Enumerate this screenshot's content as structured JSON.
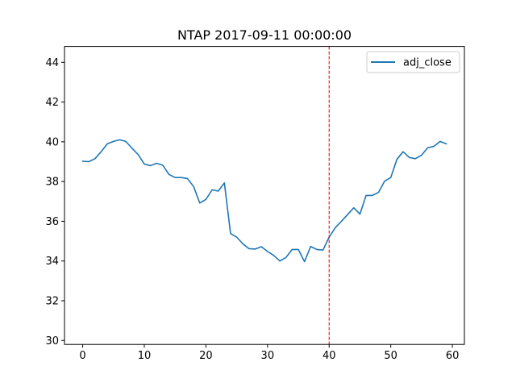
{
  "chart_data": {
    "type": "line",
    "title": "NTAP 2017-09-11 00:00:00",
    "xlabel": "",
    "ylabel": "",
    "xlim": [
      -2.95,
      61.95
    ],
    "ylim": [
      29.8,
      44.8
    ],
    "xticks": [
      0,
      10,
      20,
      30,
      40,
      50,
      60
    ],
    "yticks": [
      30,
      32,
      34,
      36,
      38,
      40,
      42,
      44
    ],
    "grid": false,
    "legend": {
      "position": "upper-right"
    },
    "series": [
      {
        "name": "adj_close",
        "color": "#1f77b4",
        "x": [
          0,
          1,
          2,
          3,
          4,
          5,
          6,
          7,
          8,
          9,
          10,
          11,
          12,
          13,
          14,
          15,
          16,
          17,
          18,
          19,
          20,
          21,
          22,
          23,
          24,
          25,
          26,
          27,
          28,
          29,
          30,
          31,
          32,
          33,
          34,
          35,
          36,
          37,
          38,
          39,
          40,
          41,
          42,
          43,
          44,
          45,
          46,
          47,
          48,
          49,
          50,
          51,
          52,
          53,
          54,
          55,
          56,
          57,
          58,
          59
        ],
        "values": [
          39.02,
          39.0,
          39.15,
          39.5,
          39.9,
          40.02,
          40.1,
          40.02,
          39.68,
          39.36,
          38.88,
          38.8,
          38.92,
          38.82,
          38.36,
          38.2,
          38.2,
          38.15,
          37.75,
          36.92,
          37.1,
          37.58,
          37.52,
          37.93,
          35.38,
          35.2,
          34.86,
          34.62,
          34.6,
          34.72,
          34.48,
          34.28,
          34.0,
          34.18,
          34.58,
          34.58,
          33.97,
          34.73,
          34.58,
          34.55,
          35.2,
          35.68,
          36.0,
          36.34,
          36.68,
          36.36,
          37.3,
          37.3,
          37.45,
          38.02,
          38.2,
          39.12,
          39.5,
          39.21,
          39.15,
          39.33,
          39.7,
          39.77,
          40.02,
          39.9
        ]
      }
    ],
    "annotations": [
      {
        "type": "vline",
        "x": 40,
        "color": "#ff0000",
        "style": "dashed"
      }
    ]
  }
}
